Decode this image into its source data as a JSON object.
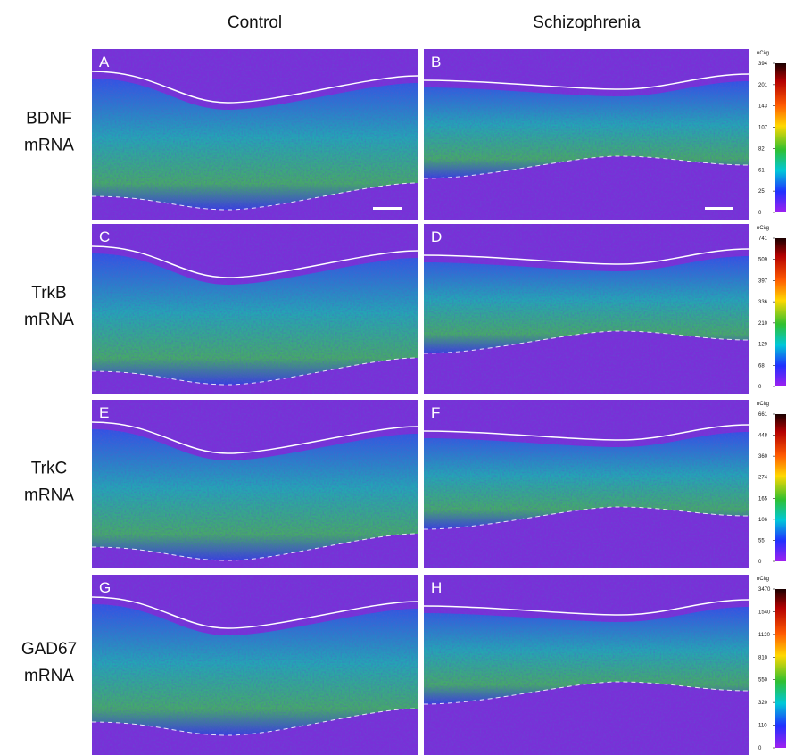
{
  "columns": [
    "Control",
    "Schizophrenia"
  ],
  "rows": [
    {
      "label": [
        "BDNF",
        "mRNA"
      ],
      "panels": [
        "A",
        "B"
      ],
      "scale": {
        "unit": "nCi/g",
        "ticks": [
          "394",
          "201",
          "143",
          "107",
          "82",
          "61",
          "25",
          "0"
        ]
      }
    },
    {
      "label": [
        "TrkB",
        "mRNA"
      ],
      "panels": [
        "C",
        "D"
      ],
      "scale": {
        "unit": "nCi/g",
        "ticks": [
          "741",
          "509",
          "397",
          "336",
          "210",
          "129",
          "68",
          "0"
        ]
      }
    },
    {
      "label": [
        "TrkC",
        "mRNA"
      ],
      "panels": [
        "E",
        "F"
      ],
      "scale": {
        "unit": "nCi/g",
        "ticks": [
          "661",
          "448",
          "360",
          "274",
          "165",
          "106",
          "55",
          "0"
        ]
      }
    },
    {
      "label": [
        "GAD67",
        "mRNA"
      ],
      "panels": [
        "G",
        "H"
      ],
      "scale": {
        "unit": "nCi/g",
        "ticks": [
          "3470",
          "1540",
          "1120",
          "810",
          "550",
          "320",
          "110",
          "0"
        ]
      }
    }
  ]
}
